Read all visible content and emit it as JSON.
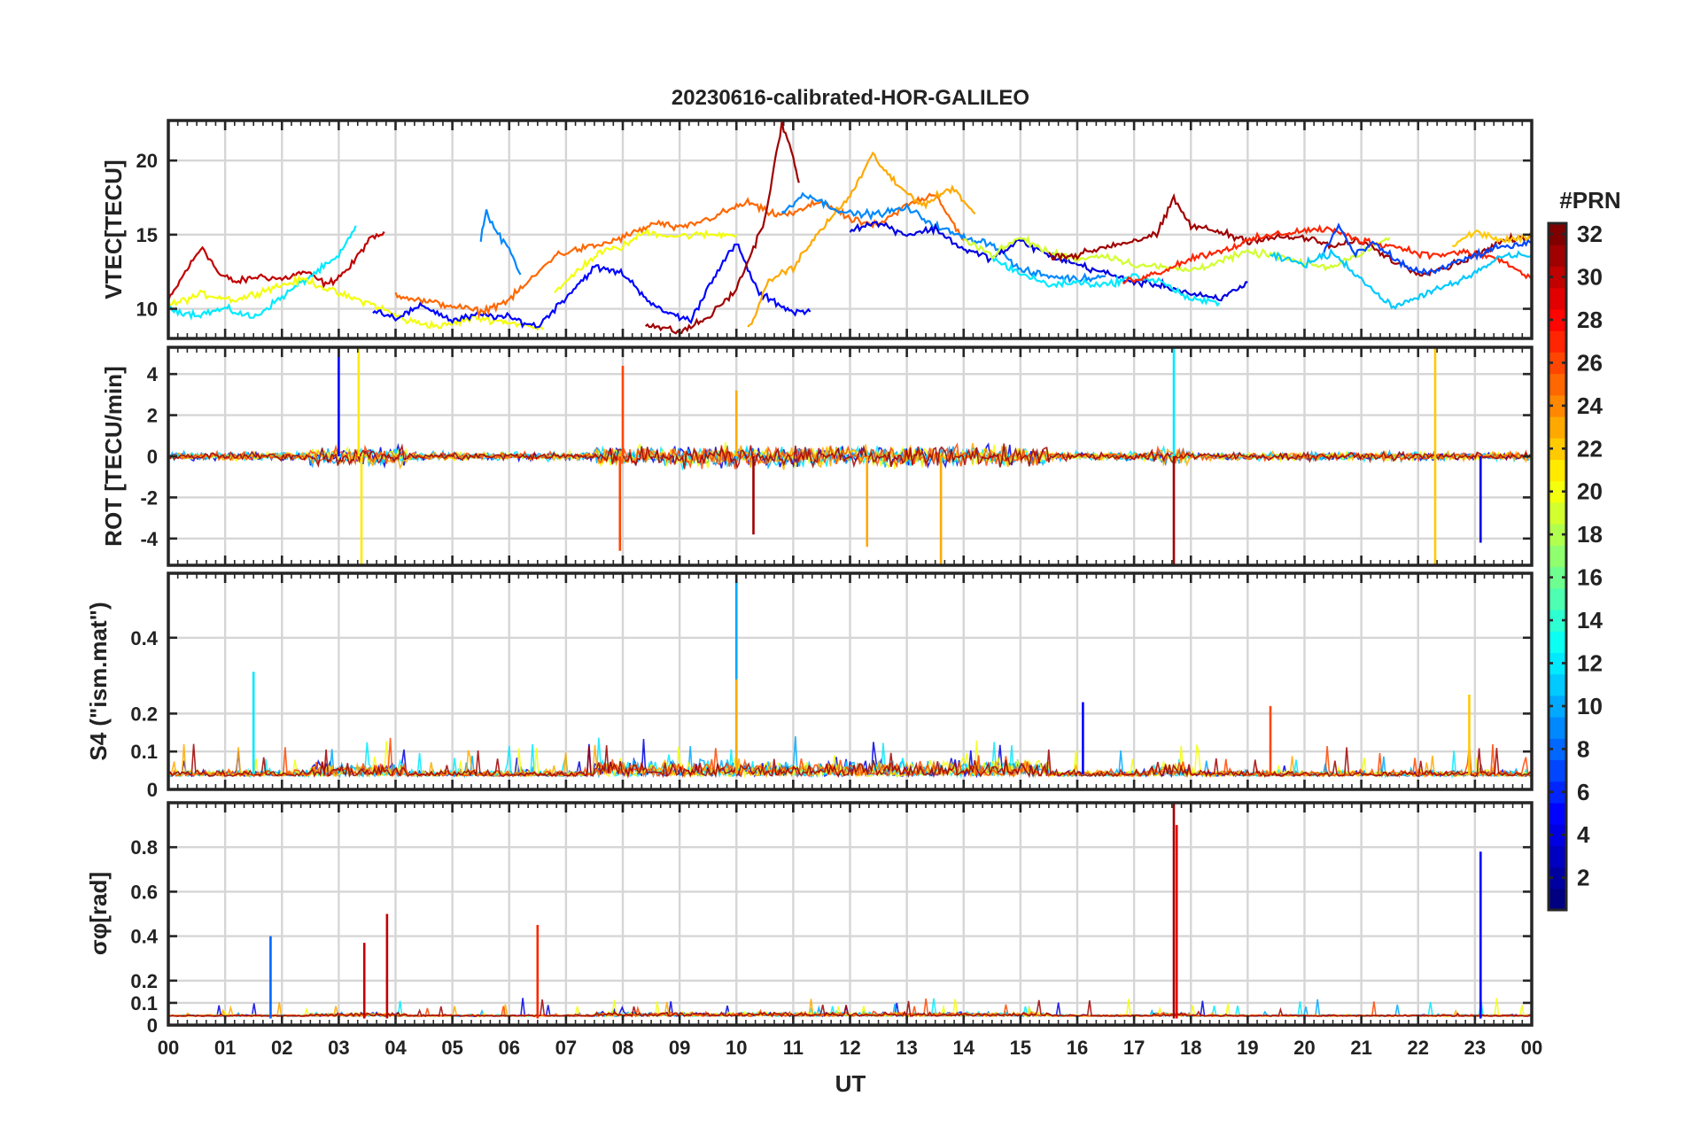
{
  "figure": {
    "title": "20230616-calibrated-HOR-GALILEO",
    "xlabel": "UT",
    "colorbar_label": "#PRN"
  },
  "chart_data": {
    "type": "line",
    "x_ticks": [
      "00",
      "01",
      "02",
      "03",
      "04",
      "05",
      "06",
      "07",
      "08",
      "09",
      "10",
      "11",
      "12",
      "13",
      "14",
      "15",
      "16",
      "17",
      "18",
      "19",
      "20",
      "21",
      "22",
      "23",
      "00"
    ],
    "xlim_hours": [
      0,
      24
    ],
    "colorbar": {
      "label": "#PRN",
      "range": [
        1,
        32
      ],
      "ticks": [
        "2",
        "4",
        "6",
        "8",
        "10",
        "12",
        "14",
        "16",
        "18",
        "20",
        "22",
        "24",
        "26",
        "28",
        "30",
        "32"
      ],
      "colormap": "jet"
    },
    "panels": [
      {
        "id": "vtec",
        "ylabel": "VTEC[TECU]",
        "ylim": [
          8,
          22.7
        ],
        "yticks": [
          "10",
          "15",
          "20"
        ],
        "ytick_values": [
          10,
          15,
          20
        ],
        "series": [
          {
            "prn": 30,
            "hours": [
              0,
              0.3,
              0.6,
              0.9,
              1.2,
              1.6,
              2,
              2.4,
              2.8,
              3.2,
              3.5,
              3.8
            ],
            "values": [
              10.5,
              12.5,
              14.2,
              12.3,
              11.8,
              12.2,
              12,
              12.5,
              11.6,
              12.8,
              14.5,
              15.2
            ]
          },
          {
            "prn": 12,
            "hours": [
              0,
              0.5,
              1,
              1.5,
              2,
              2.5,
              3,
              3.3
            ],
            "values": [
              10,
              9.6,
              10,
              9.4,
              10.8,
              12.2,
              13.5,
              15.6
            ]
          },
          {
            "prn": 20,
            "hours": [
              0,
              0.6,
              1.2,
              1.8,
              2.4,
              3,
              3.6,
              4.2,
              4.8,
              5.4,
              6,
              6.6
            ],
            "values": [
              10.2,
              11,
              10.6,
              11.4,
              12,
              11,
              10.3,
              9.2,
              8.8,
              9.4,
              9.1,
              8.6
            ]
          },
          {
            "prn": 5,
            "hours": [
              3.6,
              4,
              4.5,
              5,
              5.5,
              6,
              6.5,
              7,
              7.5,
              8,
              8.6,
              9.2,
              9.6,
              10,
              10.4,
              11,
              11.3
            ],
            "values": [
              10,
              9.4,
              10.2,
              9.2,
              9.6,
              9.4,
              8.8,
              10.8,
              12.8,
              12.4,
              10,
              9.2,
              12.2,
              14.4,
              11,
              9.8,
              9.8
            ]
          },
          {
            "prn": 9,
            "hours": [
              5.5,
              5.6,
              5.8,
              6,
              6.2
            ],
            "values": [
              14.8,
              16.6,
              15,
              14,
              12.3
            ]
          },
          {
            "prn": 25,
            "hours": [
              4,
              4.5,
              5,
              5.5,
              6,
              6.5,
              6.8,
              7.2,
              7.6,
              8,
              8.6,
              9,
              9.6,
              10.2,
              10.6,
              11,
              11.5,
              12,
              12.5,
              13,
              13.5,
              14
            ],
            "values": [
              11,
              10.5,
              10.2,
              9.8,
              10.6,
              12.4,
              13.6,
              14,
              14.3,
              14.8,
              15.8,
              15.4,
              16.2,
              17.2,
              16.4,
              16.4,
              17.3,
              16,
              15.6,
              17,
              17.8,
              14.6
            ]
          },
          {
            "prn": 20,
            "hours": [
              6.8,
              7.2,
              7.6,
              8,
              8.4,
              8.9,
              9.4,
              10
            ],
            "values": [
              11,
              12.6,
              13.8,
              14.2,
              15.2,
              14.9,
              15,
              15
            ]
          },
          {
            "prn": 31,
            "hours": [
              8.4,
              9,
              9.5,
              10,
              10.5,
              10.8,
              11,
              11.1
            ],
            "values": [
              9,
              8.4,
              9.4,
              11.3,
              16,
              22.5,
              20.2,
              18.5
            ]
          },
          {
            "prn": 23,
            "hours": [
              10.2,
              10.6,
              11,
              11.5,
              12,
              12.4,
              12.8,
              13.3,
              13.8,
              14.2
            ],
            "values": [
              8.6,
              12,
              12.8,
              15.4,
              17.6,
              20.4,
              18.4,
              17,
              18.2,
              16.4
            ]
          },
          {
            "prn": 9,
            "hours": [
              10.8,
              11.2,
              11.6,
              12,
              12.5,
              13,
              13.5,
              14,
              14.5,
              15,
              15.5,
              16,
              16.5
            ],
            "values": [
              16.4,
              17.8,
              17,
              16.4,
              16.4,
              16.8,
              15.6,
              14.8,
              14.4,
              12.6,
              12.2,
              12,
              12.2
            ]
          },
          {
            "prn": 4,
            "hours": [
              12,
              12.5,
              13,
              13.5,
              14,
              14.5,
              15,
              15.5,
              16,
              16.5,
              17,
              17.5,
              18,
              18.5,
              19
            ],
            "values": [
              15.4,
              15.8,
              15,
              15.4,
              14,
              13.4,
              14.6,
              13.6,
              13,
              12.4,
              11.8,
              11.6,
              11,
              10.6,
              11.8
            ]
          },
          {
            "prn": 12,
            "hours": [
              14.5,
              15,
              15.5,
              16,
              16.5,
              17,
              17.5,
              18,
              18.5
            ],
            "values": [
              13.4,
              12.4,
              11.6,
              11.8,
              11.6,
              12.2,
              11.8,
              10.6,
              10.4
            ]
          },
          {
            "prn": 19,
            "hours": [
              14,
              14.5,
              15,
              15.5,
              16,
              16.5,
              17,
              17.5,
              18,
              18.5,
              19,
              19.5,
              20,
              20.5,
              21,
              21.5
            ],
            "values": [
              14.8,
              13.6,
              14.8,
              13.8,
              13.4,
              13.6,
              13,
              12.8,
              12.6,
              13.2,
              13.8,
              13.6,
              13,
              12.8,
              13.8,
              14.8
            ]
          },
          {
            "prn": 31,
            "hours": [
              15.5,
              16,
              16.5,
              17,
              17.4,
              17.7,
              18,
              18.5,
              19,
              19.5,
              20,
              20.5,
              21,
              21.5,
              22,
              22.5,
              23,
              23.5,
              24
            ],
            "values": [
              13.6,
              13.6,
              14.2,
              14.6,
              15,
              17.4,
              15.6,
              15.2,
              14.6,
              14.8,
              14.8,
              14.2,
              14.6,
              13.4,
              12.4,
              12.8,
              13.6,
              14.6,
              14.8
            ]
          },
          {
            "prn": 27,
            "hours": [
              16.8,
              17.4,
              18,
              18.6,
              19.2,
              19.8,
              20.4,
              21,
              21.6,
              22.2,
              22.8,
              23.4,
              24
            ],
            "values": [
              11.8,
              12.4,
              13.4,
              14,
              14.8,
              15.2,
              15.4,
              14.6,
              14.2,
              13.6,
              13.8,
              13.4,
              12
            ]
          },
          {
            "prn": 7,
            "hours": [
              20.3,
              20.6,
              20.9,
              21.2,
              21.5,
              21.8,
              22.2,
              22.6,
              23,
              23.5,
              24
            ],
            "values": [
              13.6,
              15.6,
              13.6,
              14.4,
              13.6,
              12.8,
              12.4,
              13,
              13.6,
              14.2,
              14.4
            ]
          },
          {
            "prn": 11,
            "hours": [
              19.4,
              20,
              20.5,
              21,
              21.5,
              21.8,
              22.2,
              22.6,
              23,
              23.5,
              24
            ],
            "values": [
              13.6,
              13,
              13.8,
              12,
              10.2,
              10.4,
              11.2,
              11.6,
              12.4,
              13.6,
              13.6
            ]
          },
          {
            "prn": 22,
            "hours": [
              22.6,
              23,
              23.5,
              24
            ],
            "values": [
              14.2,
              15.2,
              14.6,
              14.8
            ]
          }
        ]
      },
      {
        "id": "rot",
        "ylabel": "ROT [TECU/min]",
        "ylim": [
          -5.3,
          5.3
        ],
        "yticks": [
          "-4",
          "-2",
          "0",
          "2",
          "4"
        ],
        "ytick_values": [
          -4,
          -2,
          0,
          2,
          4
        ],
        "spikes": [
          {
            "prn": 5,
            "hour": 3.0,
            "value": 5.3
          },
          {
            "prn": 21,
            "hour": 3.4,
            "value": -5.3
          },
          {
            "prn": 21,
            "hour": 3.35,
            "value": 5.3
          },
          {
            "prn": 26,
            "hour": 7.95,
            "value": -4.6
          },
          {
            "prn": 26,
            "hour": 8.0,
            "value": 4.4
          },
          {
            "prn": 23,
            "hour": 10.0,
            "value": 3.2
          },
          {
            "prn": 31,
            "hour": 10.3,
            "value": -3.8
          },
          {
            "prn": 23,
            "hour": 12.3,
            "value": -4.4
          },
          {
            "prn": 23,
            "hour": 13.6,
            "value": -5.3
          },
          {
            "prn": 31,
            "hour": 17.7,
            "value": -5.3
          },
          {
            "prn": 12,
            "hour": 17.7,
            "value": 5.3
          },
          {
            "prn": 22,
            "hour": 22.3,
            "value": -5.3
          },
          {
            "prn": 22,
            "hour": 22.3,
            "value": 5.3
          },
          {
            "prn": 4,
            "hour": 23.1,
            "value": -4.2
          }
        ]
      },
      {
        "id": "s4",
        "ylabel": "S4 (\"ism.mat\")",
        "ylim": [
          0,
          0.57
        ],
        "yticks": [
          "0",
          "0.1",
          "0.2",
          "0.4"
        ],
        "ytick_values": [
          0,
          0.1,
          0.2,
          0.4
        ],
        "spikes": [
          {
            "prn": 12,
            "hour": 1.5,
            "value": 0.31
          },
          {
            "prn": 10,
            "hour": 10.0,
            "value": 0.55
          },
          {
            "prn": 23,
            "hour": 10.0,
            "value": 0.29
          },
          {
            "prn": 5,
            "hour": 16.1,
            "value": 0.23
          },
          {
            "prn": 26,
            "hour": 19.4,
            "value": 0.22
          },
          {
            "prn": 22,
            "hour": 22.9,
            "value": 0.25
          }
        ]
      },
      {
        "id": "sigma_phi",
        "ylabel": "σφ[rad]",
        "ylim": [
          0,
          1.0
        ],
        "yticks": [
          "0",
          "0.1",
          "0.2",
          "0.4",
          "0.6",
          "0.8"
        ],
        "ytick_values": [
          0,
          0.1,
          0.2,
          0.4,
          0.6,
          0.8
        ],
        "spikes": [
          {
            "prn": 8,
            "hour": 1.8,
            "value": 0.4
          },
          {
            "prn": 30,
            "hour": 3.45,
            "value": 0.37
          },
          {
            "prn": 30,
            "hour": 3.85,
            "value": 0.5
          },
          {
            "prn": 27,
            "hour": 6.5,
            "value": 0.45
          },
          {
            "prn": 31,
            "hour": 17.7,
            "value": 1.0
          },
          {
            "prn": 29,
            "hour": 17.75,
            "value": 0.9
          },
          {
            "prn": 5,
            "hour": 23.1,
            "value": 0.78
          }
        ]
      }
    ]
  }
}
